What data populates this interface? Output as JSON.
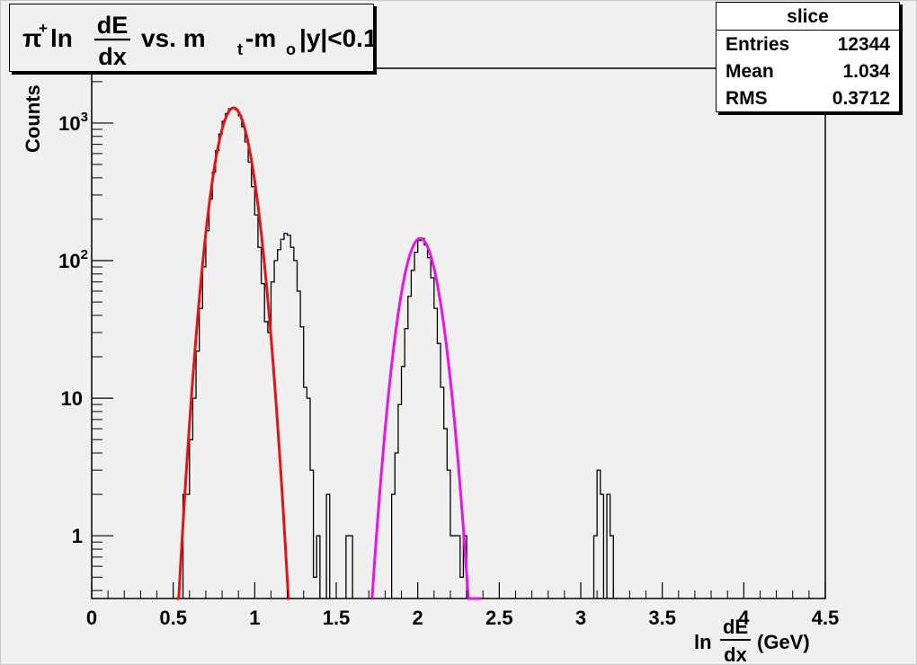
{
  "chart_data": {
    "type": "histogram",
    "title": {
      "pi": "π",
      "sup_plus": "+",
      "ln": "ln",
      "frac_num": "dE",
      "frac_den": "dx",
      "vs": "vs. m",
      "sub_t": "t",
      "minus_m": "-m",
      "sub_o": "o",
      "cut": "|y|<0.1"
    },
    "xlabel": {
      "ln": "ln",
      "frac_num": "dE",
      "frac_den": "dx",
      "unit": "(GeV)"
    },
    "ylabel": "Counts",
    "xlim": [
      0,
      4.5
    ],
    "ylim": [
      0.35,
      2500
    ],
    "y_log_scale": true,
    "grid": false,
    "x_ticks": [
      {
        "value": 0,
        "label": "0"
      },
      {
        "value": 0.5,
        "label": "0.5"
      },
      {
        "value": 1,
        "label": "1"
      },
      {
        "value": 1.5,
        "label": "1.5"
      },
      {
        "value": 2,
        "label": "2"
      },
      {
        "value": 2.5,
        "label": "2.5"
      },
      {
        "value": 3,
        "label": "3"
      },
      {
        "value": 3.5,
        "label": "3.5"
      },
      {
        "value": 4,
        "label": "4"
      },
      {
        "value": 4.5,
        "label": "4.5"
      }
    ],
    "y_ticks": [
      {
        "value": 1,
        "base": "1",
        "exp": ""
      },
      {
        "value": 10,
        "base": "10",
        "exp": ""
      },
      {
        "value": 100,
        "base": "10",
        "exp": "2"
      },
      {
        "value": 1000,
        "base": "10",
        "exp": "3"
      }
    ],
    "histogram": {
      "name": "slice",
      "bin_width": 0.02,
      "color": "#000000",
      "counts": [
        [
          0.56,
          2
        ],
        [
          0.58,
          2
        ],
        [
          0.6,
          5
        ],
        [
          0.62,
          10
        ],
        [
          0.64,
          22
        ],
        [
          0.66,
          45
        ],
        [
          0.68,
          90
        ],
        [
          0.7,
          165
        ],
        [
          0.72,
          280
        ],
        [
          0.74,
          440
        ],
        [
          0.76,
          630
        ],
        [
          0.78,
          830
        ],
        [
          0.8,
          1030
        ],
        [
          0.82,
          1170
        ],
        [
          0.84,
          1270
        ],
        [
          0.86,
          1290
        ],
        [
          0.88,
          1250
        ],
        [
          0.9,
          1130
        ],
        [
          0.92,
          940
        ],
        [
          0.94,
          730
        ],
        [
          0.96,
          520
        ],
        [
          0.98,
          345
        ],
        [
          1.0,
          215
        ],
        [
          1.02,
          125
        ],
        [
          1.04,
          68
        ],
        [
          1.06,
          36
        ],
        [
          1.08,
          30
        ],
        [
          1.1,
          70
        ],
        [
          1.12,
          100
        ],
        [
          1.14,
          120
        ],
        [
          1.16,
          143
        ],
        [
          1.18,
          158
        ],
        [
          1.2,
          153
        ],
        [
          1.22,
          125
        ],
        [
          1.24,
          100
        ],
        [
          1.26,
          60
        ],
        [
          1.28,
          33
        ],
        [
          1.3,
          12
        ],
        [
          1.32,
          10
        ],
        [
          1.34,
          3
        ],
        [
          1.36,
          0.5
        ],
        [
          1.38,
          1
        ],
        [
          1.44,
          2
        ],
        [
          1.56,
          1
        ],
        [
          1.58,
          1
        ],
        [
          1.84,
          2
        ],
        [
          1.86,
          4
        ],
        [
          1.88,
          9
        ],
        [
          1.9,
          17
        ],
        [
          1.92,
          32
        ],
        [
          1.94,
          55
        ],
        [
          1.96,
          85
        ],
        [
          1.98,
          115
        ],
        [
          2.0,
          140
        ],
        [
          2.02,
          145
        ],
        [
          2.04,
          130
        ],
        [
          2.06,
          105
        ],
        [
          2.08,
          75
        ],
        [
          2.1,
          45
        ],
        [
          2.12,
          25
        ],
        [
          2.14,
          12
        ],
        [
          2.16,
          6
        ],
        [
          2.18,
          3
        ],
        [
          2.2,
          1
        ],
        [
          2.22,
          1
        ],
        [
          2.24,
          1
        ],
        [
          2.26,
          0.5
        ],
        [
          2.28,
          1
        ],
        [
          3.08,
          1
        ],
        [
          3.1,
          3
        ],
        [
          3.12,
          2
        ],
        [
          3.16,
          2
        ],
        [
          3.18,
          1
        ]
      ]
    },
    "fits": [
      {
        "name": "fit1",
        "color": "#e41414",
        "mean": 0.87,
        "sigma": 0.083,
        "amplitude": 1290,
        "x_range": [
          0.52,
          1.21
        ]
      },
      {
        "name": "fit2",
        "color": "#e614e6",
        "mean": 2.015,
        "sigma": 0.085,
        "amplitude": 145,
        "x_range": [
          1.72,
          2.39
        ]
      }
    ]
  },
  "stats": {
    "title": "slice",
    "rows": [
      {
        "key": "Entries",
        "value": "12344"
      },
      {
        "key": "Mean",
        "value": "1.034"
      },
      {
        "key": "RMS",
        "value": "0.3712"
      }
    ]
  }
}
